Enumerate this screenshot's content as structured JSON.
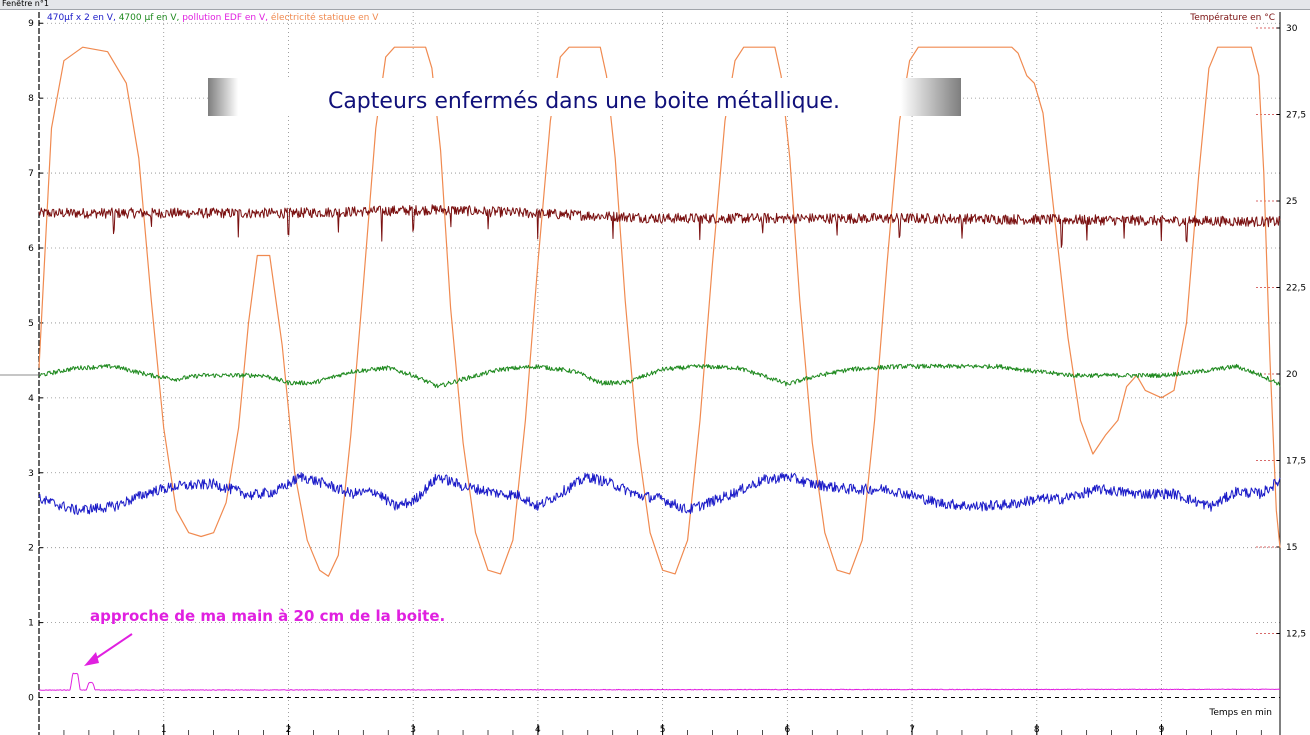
{
  "window": {
    "title": "Fenêtre n°1"
  },
  "colors": {
    "blue": "#1c1cc8",
    "green": "#1f8a1f",
    "magenta": "#e020e0",
    "orange": "#f08a50",
    "darkred": "#7a1010",
    "grid": "#8a8a8a",
    "banner_text": "#10107a"
  },
  "chart_data": {
    "type": "line",
    "title": "Capteurs enfermés dans une boite métallique.",
    "legend_left": [
      {
        "text": "470µf x 2 en V",
        "color": "#1c1cc8"
      },
      {
        "text": ", ",
        "color": "#1c1cc8"
      },
      {
        "text": "4700 µf en V",
        "color": "#1f8a1f"
      },
      {
        "text": ", ",
        "color": "#1f8a1f"
      },
      {
        "text": "pollution EDF en V",
        "color": "#e020e0"
      },
      {
        "text": ", ",
        "color": "#e020e0"
      },
      {
        "text": "électricité statique en V",
        "color": "#f08a50"
      }
    ],
    "legend_right": {
      "text": "Température en °C",
      "color": "#7a1010"
    },
    "xlabel": "Temps en min",
    "xlim": [
      0,
      9.95
    ],
    "x_ticks": [
      1,
      2,
      3,
      4,
      5,
      6,
      7,
      8,
      9
    ],
    "x_tick_labels": [
      "1",
      "2",
      "3",
      "4",
      "5",
      "6",
      "7",
      "8",
      "9"
    ],
    "ylim_left": [
      -0.5,
      9.15
    ],
    "y_ticks_left": [
      0,
      1,
      2,
      3,
      4,
      5,
      6,
      7,
      8,
      9
    ],
    "y_tick_labels_left": [
      "0",
      "1",
      "2",
      "3",
      "4",
      "5",
      "6",
      "7",
      "8",
      "9"
    ],
    "ylim_right": [
      10,
      30
    ],
    "y_ticks_right": [
      12.5,
      15,
      17.5,
      20,
      22.5,
      25,
      27.5,
      30
    ],
    "y_tick_labels_right": [
      "12,5",
      "15",
      "17,5",
      "20",
      "22,5",
      "25",
      "27,5",
      "30"
    ],
    "annotation": {
      "text": "approche de ma main à 20 cm de la boite.",
      "color": "#e020e0"
    },
    "series": [
      {
        "name": "électricité statique en V",
        "color": "#f08a50",
        "axis": "left",
        "points": [
          [
            0,
            4.4
          ],
          [
            0.05,
            6
          ],
          [
            0.1,
            7.6
          ],
          [
            0.2,
            8.5
          ],
          [
            0.35,
            8.68
          ],
          [
            0.55,
            8.62
          ],
          [
            0.7,
            8.2
          ],
          [
            0.8,
            7.2
          ],
          [
            0.9,
            5.3
          ],
          [
            1,
            3.6
          ],
          [
            1.1,
            2.5
          ],
          [
            1.2,
            2.2
          ],
          [
            1.3,
            2.15
          ],
          [
            1.4,
            2.2
          ],
          [
            1.5,
            2.6
          ],
          [
            1.6,
            3.6
          ],
          [
            1.68,
            5
          ],
          [
            1.75,
            5.9
          ],
          [
            1.85,
            5.9
          ],
          [
            1.95,
            4.7
          ],
          [
            2.05,
            3
          ],
          [
            2.15,
            2.1
          ],
          [
            2.25,
            1.7
          ],
          [
            2.32,
            1.62
          ],
          [
            2.4,
            1.9
          ],
          [
            2.5,
            3.5
          ],
          [
            2.6,
            5.5
          ],
          [
            2.7,
            7.6
          ],
          [
            2.78,
            8.55
          ],
          [
            2.85,
            8.68
          ],
          [
            3.1,
            8.68
          ],
          [
            3.15,
            8.4
          ],
          [
            3.22,
            7.3
          ],
          [
            3.3,
            5.2
          ],
          [
            3.4,
            3.4
          ],
          [
            3.5,
            2.2
          ],
          [
            3.6,
            1.7
          ],
          [
            3.7,
            1.65
          ],
          [
            3.8,
            2.1
          ],
          [
            3.9,
            3.7
          ],
          [
            4,
            5.8
          ],
          [
            4.1,
            7.7
          ],
          [
            4.18,
            8.55
          ],
          [
            4.25,
            8.68
          ],
          [
            4.5,
            8.68
          ],
          [
            4.55,
            8.3
          ],
          [
            4.62,
            7.2
          ],
          [
            4.7,
            5.3
          ],
          [
            4.8,
            3.4
          ],
          [
            4.9,
            2.2
          ],
          [
            5,
            1.7
          ],
          [
            5.1,
            1.65
          ],
          [
            5.2,
            2.1
          ],
          [
            5.3,
            3.7
          ],
          [
            5.4,
            5.8
          ],
          [
            5.5,
            7.7
          ],
          [
            5.58,
            8.5
          ],
          [
            5.65,
            8.68
          ],
          [
            5.9,
            8.68
          ],
          [
            5.95,
            8.3
          ],
          [
            6.02,
            7.2
          ],
          [
            6.1,
            5.3
          ],
          [
            6.2,
            3.4
          ],
          [
            6.3,
            2.2
          ],
          [
            6.4,
            1.7
          ],
          [
            6.5,
            1.65
          ],
          [
            6.6,
            2.1
          ],
          [
            6.7,
            3.7
          ],
          [
            6.8,
            5.8
          ],
          [
            6.9,
            7.7
          ],
          [
            6.98,
            8.5
          ],
          [
            7.05,
            8.68
          ],
          [
            7.8,
            8.68
          ],
          [
            7.85,
            8.6
          ],
          [
            7.92,
            8.3
          ],
          [
            7.98,
            8.2
          ],
          [
            8.05,
            7.8
          ],
          [
            8.15,
            6.3
          ],
          [
            8.25,
            4.8
          ],
          [
            8.35,
            3.7
          ],
          [
            8.45,
            3.25
          ],
          [
            8.55,
            3.5
          ],
          [
            8.65,
            3.7
          ],
          [
            8.72,
            4.15
          ],
          [
            8.8,
            4.3
          ],
          [
            8.87,
            4.1
          ],
          [
            9,
            4.0
          ],
          [
            9.1,
            4.1
          ],
          [
            9.2,
            5
          ],
          [
            9.3,
            7
          ],
          [
            9.38,
            8.4
          ],
          [
            9.45,
            8.68
          ],
          [
            9.72,
            8.68
          ],
          [
            9.78,
            8.3
          ],
          [
            9.82,
            7
          ],
          [
            9.87,
            4.5
          ],
          [
            9.92,
            2.5
          ],
          [
            9.95,
            2
          ]
        ]
      },
      {
        "name": "Température en °C",
        "color": "#7a1010",
        "axis": "right",
        "base": [
          [
            0,
            24.65
          ],
          [
            2,
            24.65
          ],
          [
            3.2,
            24.75
          ],
          [
            5,
            24.5
          ],
          [
            7,
            24.5
          ],
          [
            8.5,
            24.45
          ],
          [
            9.95,
            24.4
          ]
        ],
        "noise_amplitude": 0.15,
        "spikes": [
          [
            0.6,
            -0.5
          ],
          [
            0.9,
            -0.4
          ],
          [
            1.6,
            -0.6
          ],
          [
            2.0,
            -0.7
          ],
          [
            2.4,
            -0.5
          ],
          [
            2.75,
            -0.9
          ],
          [
            3.0,
            -0.6
          ],
          [
            3.3,
            -0.5
          ],
          [
            3.6,
            -0.6
          ],
          [
            4.0,
            -0.6
          ],
          [
            4.6,
            -0.5
          ],
          [
            5.3,
            -0.6
          ],
          [
            5.8,
            -0.5
          ],
          [
            6.4,
            -0.5
          ],
          [
            6.9,
            -0.5
          ],
          [
            7.4,
            -0.6
          ],
          [
            8.2,
            -0.7
          ],
          [
            8.4,
            -0.7
          ],
          [
            8.7,
            -0.6
          ],
          [
            9.0,
            -0.7
          ],
          [
            9.2,
            -0.6
          ]
        ]
      },
      {
        "name": "4700 µf en V",
        "color": "#1f8a1f",
        "axis": "left",
        "points": [
          [
            0,
            4.3
          ],
          [
            0.3,
            4.4
          ],
          [
            0.6,
            4.42
          ],
          [
            0.9,
            4.3
          ],
          [
            1.1,
            4.25
          ],
          [
            1.3,
            4.3
          ],
          [
            1.6,
            4.3
          ],
          [
            1.8,
            4.3
          ],
          [
            2,
            4.2
          ],
          [
            2.2,
            4.2
          ],
          [
            2.5,
            4.35
          ],
          [
            2.8,
            4.4
          ],
          [
            3.0,
            4.3
          ],
          [
            3.2,
            4.15
          ],
          [
            3.4,
            4.25
          ],
          [
            3.7,
            4.38
          ],
          [
            4.0,
            4.42
          ],
          [
            4.3,
            4.35
          ],
          [
            4.5,
            4.2
          ],
          [
            4.7,
            4.2
          ],
          [
            5.0,
            4.38
          ],
          [
            5.3,
            4.42
          ],
          [
            5.6,
            4.4
          ],
          [
            5.8,
            4.3
          ],
          [
            6.0,
            4.18
          ],
          [
            6.2,
            4.28
          ],
          [
            6.5,
            4.38
          ],
          [
            6.9,
            4.42
          ],
          [
            7.3,
            4.42
          ],
          [
            7.7,
            4.42
          ],
          [
            8.0,
            4.35
          ],
          [
            8.3,
            4.3
          ],
          [
            8.7,
            4.3
          ],
          [
            9.0,
            4.3
          ],
          [
            9.3,
            4.35
          ],
          [
            9.6,
            4.42
          ],
          [
            9.8,
            4.3
          ],
          [
            9.95,
            4.18
          ]
        ],
        "noise_amplitude": 0.03
      },
      {
        "name": "470µf x 2 en V",
        "color": "#1c1cc8",
        "axis": "left",
        "points": [
          [
            0,
            2.65
          ],
          [
            0.3,
            2.5
          ],
          [
            0.6,
            2.55
          ],
          [
            0.9,
            2.75
          ],
          [
            1.1,
            2.82
          ],
          [
            1.4,
            2.85
          ],
          [
            1.7,
            2.7
          ],
          [
            1.9,
            2.75
          ],
          [
            2.1,
            2.95
          ],
          [
            2.3,
            2.85
          ],
          [
            2.5,
            2.72
          ],
          [
            2.7,
            2.75
          ],
          [
            2.85,
            2.55
          ],
          [
            3.0,
            2.62
          ],
          [
            3.2,
            2.95
          ],
          [
            3.4,
            2.82
          ],
          [
            3.7,
            2.72
          ],
          [
            3.85,
            2.7
          ],
          [
            4.0,
            2.55
          ],
          [
            4.2,
            2.75
          ],
          [
            4.4,
            2.95
          ],
          [
            4.6,
            2.85
          ],
          [
            4.8,
            2.7
          ],
          [
            5.0,
            2.65
          ],
          [
            5.2,
            2.5
          ],
          [
            5.4,
            2.62
          ],
          [
            5.6,
            2.75
          ],
          [
            5.8,
            2.9
          ],
          [
            6.0,
            2.95
          ],
          [
            6.2,
            2.85
          ],
          [
            6.5,
            2.78
          ],
          [
            6.8,
            2.78
          ],
          [
            7.0,
            2.7
          ],
          [
            7.2,
            2.6
          ],
          [
            7.5,
            2.55
          ],
          [
            7.8,
            2.58
          ],
          [
            8.0,
            2.65
          ],
          [
            8.2,
            2.65
          ],
          [
            8.5,
            2.78
          ],
          [
            8.8,
            2.72
          ],
          [
            9.1,
            2.72
          ],
          [
            9.3,
            2.6
          ],
          [
            9.4,
            2.55
          ],
          [
            9.6,
            2.75
          ],
          [
            9.8,
            2.72
          ],
          [
            9.95,
            2.9
          ]
        ],
        "noise_amplitude": 0.07
      },
      {
        "name": "pollution EDF en V",
        "color": "#e020e0",
        "axis": "left",
        "points": [
          [
            0,
            0.1
          ],
          [
            0.25,
            0.1
          ],
          [
            0.27,
            0.32
          ],
          [
            0.31,
            0.32
          ],
          [
            0.33,
            0.1
          ],
          [
            0.38,
            0.1
          ],
          [
            0.4,
            0.2
          ],
          [
            0.43,
            0.2
          ],
          [
            0.45,
            0.1
          ],
          [
            9.95,
            0.11
          ]
        ],
        "noise_amplitude": 0.004
      }
    ]
  }
}
